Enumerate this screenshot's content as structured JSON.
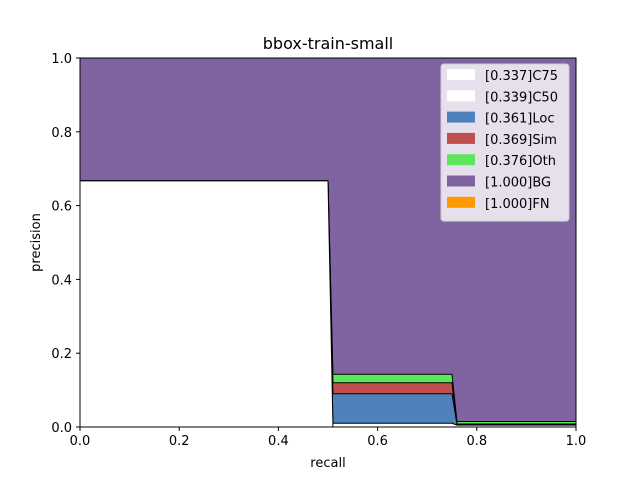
{
  "chart_data": {
    "type": "area",
    "title": "bbox-train-small",
    "xlabel": "recall",
    "ylabel": "precision",
    "xlim": [
      0.0,
      1.0
    ],
    "ylim": [
      0.0,
      1.0
    ],
    "xticks": [
      "0.0",
      "0.2",
      "0.4",
      "0.6",
      "0.8",
      "1.0"
    ],
    "yticks": [
      "0.0",
      "0.2",
      "0.4",
      "0.6",
      "0.8",
      "1.0"
    ],
    "grid": false,
    "legend_position": "top-right",
    "x": [
      0.0,
      0.5,
      0.51,
      0.75,
      0.76,
      1.0
    ],
    "series": [
      {
        "name": "[0.337]C75",
        "color": "#ffffff",
        "values": [
          0.667,
          0.667,
          0.0,
          0.0,
          0.0,
          0.0
        ]
      },
      {
        "name": "[0.339]C50",
        "color": "#ffffff",
        "values": [
          0.667,
          0.667,
          0.01,
          0.01,
          0.005,
          0.005
        ]
      },
      {
        "name": "[0.361]Loc",
        "color": "#4f81bd",
        "values": [
          0.667,
          0.667,
          0.09,
          0.09,
          0.007,
          0.007
        ]
      },
      {
        "name": "[0.369]Sim",
        "color": "#c0504d",
        "values": [
          0.667,
          0.667,
          0.12,
          0.12,
          0.008,
          0.008
        ]
      },
      {
        "name": "[0.376]Oth",
        "color": "#5fe65f",
        "values": [
          0.667,
          0.667,
          0.143,
          0.143,
          0.015,
          0.015
        ]
      },
      {
        "name": "[1.000]BG",
        "color": "#8064a2",
        "values": [
          1.0,
          1.0,
          1.0,
          1.0,
          1.0,
          1.0
        ]
      },
      {
        "name": "[1.000]FN",
        "color": "#ff9900",
        "values": [
          1.0,
          1.0,
          1.0,
          1.0,
          1.0,
          1.0
        ]
      }
    ]
  }
}
